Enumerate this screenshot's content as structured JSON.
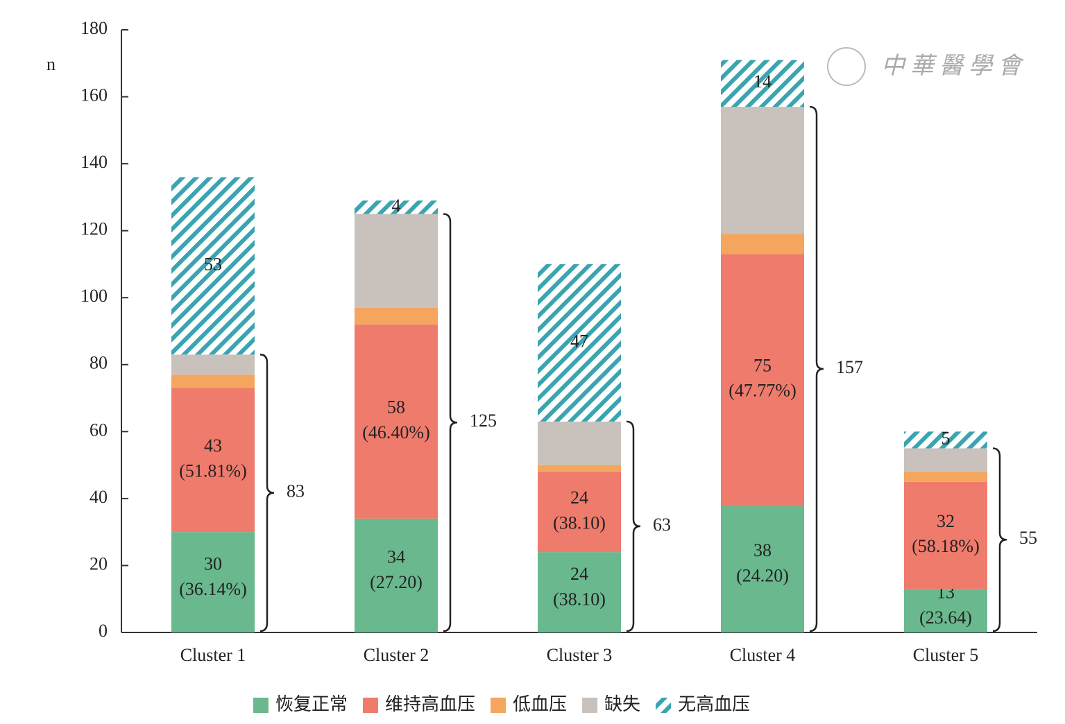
{
  "chart_data": {
    "type": "bar",
    "stacked": true,
    "y_label": "n",
    "watermark": "中華醫學會",
    "categories": [
      "Cluster 1",
      "Cluster 2",
      "Cluster 3",
      "Cluster 4",
      "Cluster 5"
    ],
    "series": [
      {
        "name": "恢复正常",
        "color": "#6ab88e",
        "values": [
          30,
          34,
          24,
          38,
          13
        ],
        "value_labels": [
          "30\n(36.14%)",
          "34\n(27.20)",
          "24\n(38.10)",
          "38\n(24.20)",
          "13\n(23.64)"
        ]
      },
      {
        "name": "维持高血压",
        "color": "#ef7b6c",
        "values": [
          43,
          58,
          24,
          75,
          32
        ],
        "value_labels": [
          "43\n(51.81%)",
          "58\n(46.40%)",
          "24\n(38.10)",
          "75\n(47.77%)",
          "32\n(58.18%)"
        ]
      },
      {
        "name": "低血压",
        "color": "#f4a55e",
        "values": [
          4,
          5,
          2,
          6,
          3
        ]
      },
      {
        "name": "缺失",
        "color": "#c9c1bc",
        "values": [
          6,
          28,
          13,
          38,
          7
        ]
      },
      {
        "name": "无高血压",
        "color": "#3aa5b0",
        "hatch": true,
        "values": [
          53,
          4,
          47,
          14,
          5
        ],
        "show_values": true
      }
    ],
    "brace_totals": [
      83,
      125,
      63,
      157,
      55
    ],
    "ylim": [
      0,
      180
    ],
    "yticks": [
      0,
      20,
      40,
      60,
      80,
      100,
      120,
      140,
      160,
      180
    ]
  }
}
